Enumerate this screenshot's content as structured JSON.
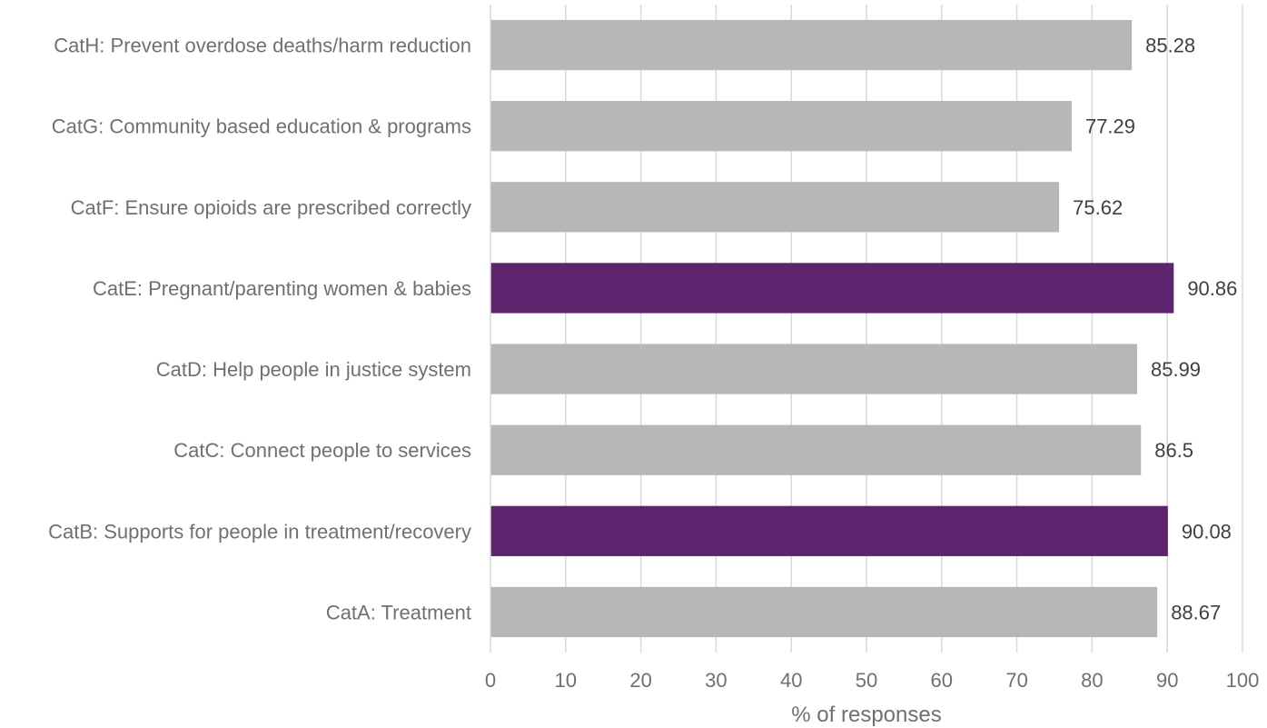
{
  "chart_data": {
    "type": "bar",
    "orientation": "horizontal",
    "title": "",
    "xlabel": "% of responses",
    "ylabel": "",
    "xlim": [
      0,
      100
    ],
    "x_ticks": [
      0,
      10,
      20,
      30,
      40,
      50,
      60,
      70,
      80,
      90,
      100
    ],
    "grid": true,
    "legend": "none",
    "categories": [
      "CatA: Treatment",
      "CatB: Supports for people in treatment/recovery",
      "CatC: Connect people to services",
      "CatD: Help people in justice system",
      "CatE: Pregnant/parenting women & babies",
      "CatF: Ensure opioids are prescribed correctly",
      "CatG: Community based education & programs",
      "CatH: Prevent overdose deaths/harm reduction"
    ],
    "values": [
      88.67,
      90.08,
      86.5,
      85.99,
      90.86,
      75.62,
      77.29,
      85.28
    ],
    "value_labels": [
      "88.67",
      "90.08",
      "86.5",
      "85.99",
      "90.86",
      "75.62",
      "77.29",
      "85.28"
    ],
    "highlighted": [
      false,
      true,
      false,
      false,
      true,
      false,
      false,
      false
    ],
    "colors": {
      "default_bar": "#b7b7b7",
      "highlight_bar": "#5f246e"
    }
  }
}
